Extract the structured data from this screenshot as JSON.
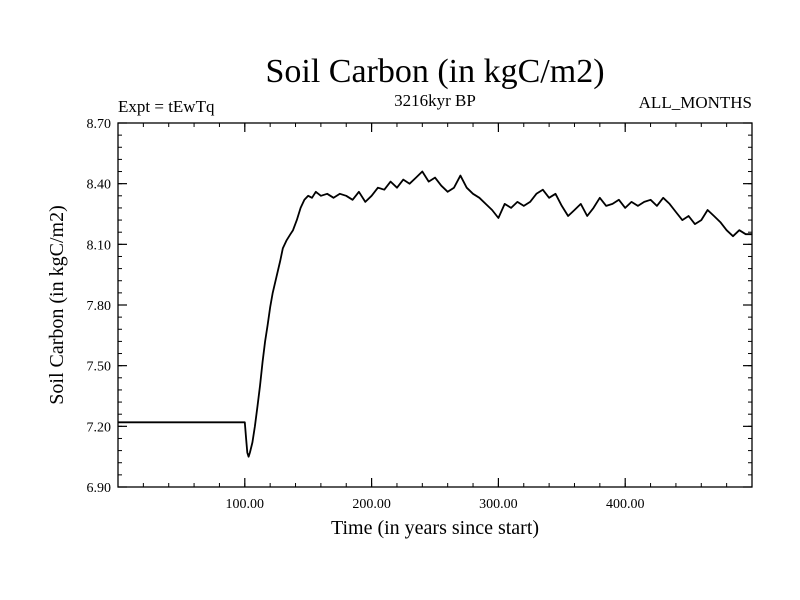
{
  "chart_data": {
    "type": "line",
    "title": "Soil Carbon (in kgC/m2)",
    "subtitle_left": "Expt = tEwTq",
    "subtitle_center": "3216kyr BP",
    "subtitle_right": "ALL_MONTHS",
    "xlabel": "Time (in years since start)",
    "ylabel": "Soil Carbon (in kgC/m2)",
    "xlim": [
      0,
      500
    ],
    "ylim": [
      6.9,
      8.7
    ],
    "xticks_major": [
      100,
      200,
      300,
      400
    ],
    "xtick_labels": [
      "100.00",
      "200.00",
      "300.00",
      "400.00"
    ],
    "yticks_major": [
      6.9,
      7.2,
      7.5,
      7.8,
      8.1,
      8.4,
      8.7
    ],
    "ytick_labels": [
      "6.90",
      "7.20",
      "7.50",
      "7.80",
      "8.10",
      "8.40",
      "8.70"
    ],
    "grid": false,
    "line_color": "#000000",
    "series": [
      {
        "name": "Soil Carbon",
        "x": [
          0,
          100,
          101,
          102,
          103,
          104,
          106,
          108,
          110,
          112,
          114,
          116,
          118,
          120,
          122,
          125,
          128,
          130,
          133,
          136,
          138,
          141,
          144,
          147,
          150,
          153,
          156,
          160,
          165,
          170,
          175,
          180,
          185,
          190,
          195,
          200,
          205,
          210,
          215,
          220,
          225,
          230,
          235,
          240,
          245,
          250,
          255,
          260,
          265,
          270,
          275,
          280,
          285,
          290,
          295,
          300,
          305,
          310,
          315,
          320,
          325,
          330,
          335,
          340,
          345,
          350,
          355,
          360,
          365,
          370,
          375,
          380,
          385,
          390,
          395,
          400,
          405,
          410,
          415,
          420,
          425,
          430,
          435,
          440,
          445,
          450,
          455,
          460,
          465,
          470,
          475,
          480,
          485,
          490,
          495,
          500
        ],
        "values": [
          7.22,
          7.22,
          7.14,
          7.07,
          7.05,
          7.07,
          7.12,
          7.2,
          7.3,
          7.4,
          7.52,
          7.62,
          7.7,
          7.79,
          7.86,
          7.94,
          8.02,
          8.08,
          8.12,
          8.15,
          8.17,
          8.22,
          8.28,
          8.32,
          8.34,
          8.33,
          8.36,
          8.34,
          8.35,
          8.33,
          8.35,
          8.34,
          8.32,
          8.36,
          8.31,
          8.34,
          8.38,
          8.37,
          8.41,
          8.38,
          8.42,
          8.4,
          8.43,
          8.46,
          8.41,
          8.43,
          8.39,
          8.36,
          8.38,
          8.44,
          8.38,
          8.35,
          8.33,
          8.3,
          8.27,
          8.23,
          8.3,
          8.28,
          8.31,
          8.29,
          8.31,
          8.35,
          8.37,
          8.33,
          8.35,
          8.29,
          8.24,
          8.27,
          8.3,
          8.24,
          8.28,
          8.33,
          8.29,
          8.3,
          8.32,
          8.28,
          8.31,
          8.29,
          8.31,
          8.32,
          8.29,
          8.33,
          8.3,
          8.26,
          8.22,
          8.24,
          8.2,
          8.22,
          8.27,
          8.24,
          8.21,
          8.17,
          8.14,
          8.17,
          8.15,
          8.15
        ]
      }
    ]
  }
}
